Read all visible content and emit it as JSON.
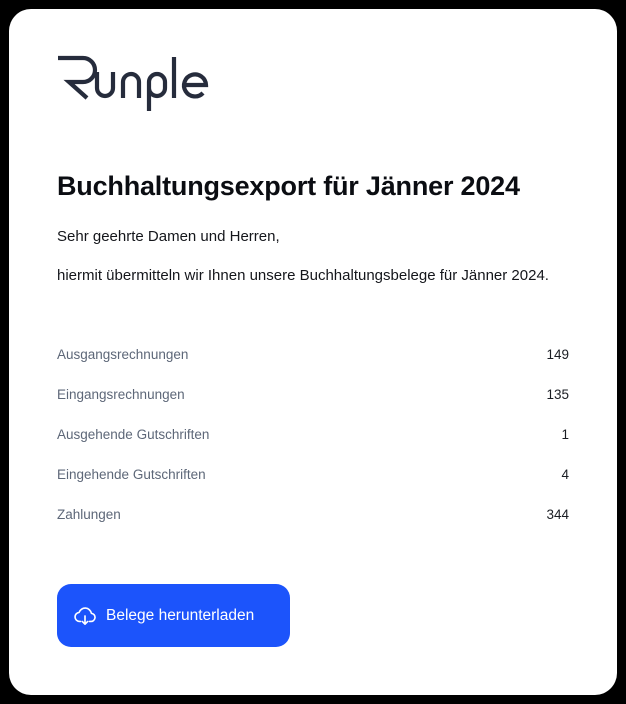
{
  "logo": {
    "text": "Runple"
  },
  "title": "Buchhaltungsexport für Jänner 2024",
  "greeting": "Sehr geehrte Damen und Herren,",
  "message": "hiermit übermitteln wir Ihnen unsere Buchhaltungsbelege für Jänner 2024.",
  "summary": [
    {
      "label": "Ausgangsrechnungen",
      "value": "149"
    },
    {
      "label": "Eingangsrechnungen",
      "value": "135"
    },
    {
      "label": "Ausgehende Gutschriften",
      "value": "1"
    },
    {
      "label": "Eingehende Gutschriften",
      "value": "4"
    },
    {
      "label": "Zahlungen",
      "value": "344"
    }
  ],
  "download_button": {
    "label": "Belege herunterladen",
    "icon": "cloud-download-icon",
    "color": "#1c54fb"
  }
}
